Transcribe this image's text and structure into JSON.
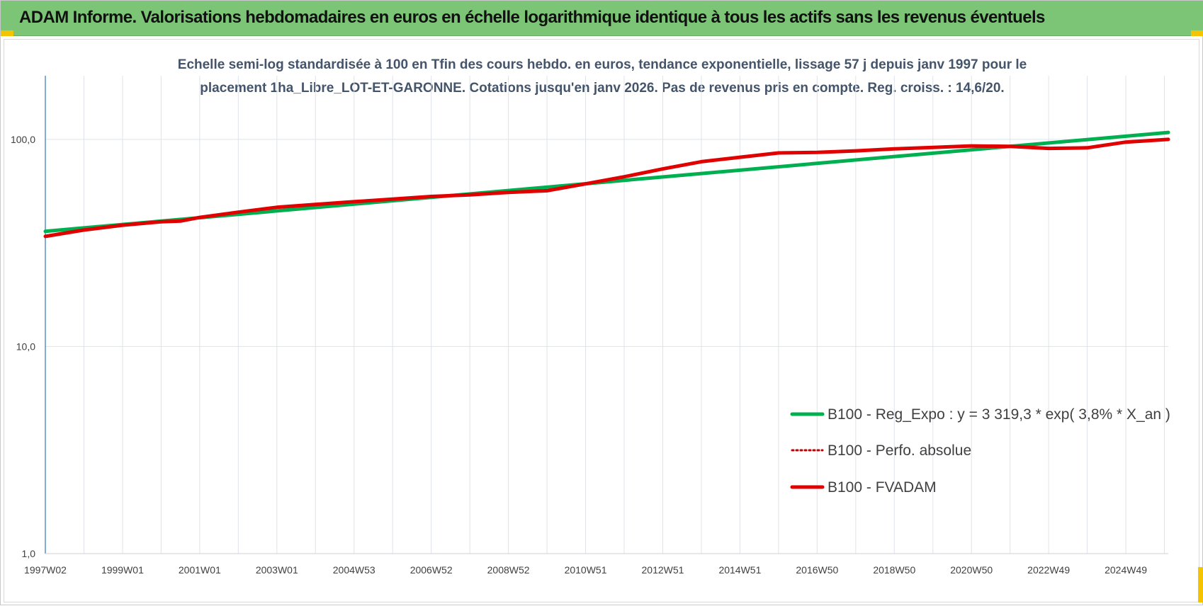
{
  "header": {
    "title": "ADAM Informe. Valorisations hebdomadaires en euros en échelle logarithmique identique à tous les actifs sans les revenus éventuels"
  },
  "colors": {
    "banner": "#7cc576",
    "reg_expo": "#00b050",
    "perfo_absolue": "#c00000",
    "fvadam": "#e00000",
    "axis_line": "#2e75b6",
    "grid": "#dfe3e8",
    "corner_marks": "#f5c400"
  },
  "chart_data": {
    "type": "line",
    "title_lines": [
      "Echelle semi-log standardisée à 100 en Tfin des cours hebdo. en euros, tendance exponentielle, lissage 57 j depuis janv 1997 pour le",
      "placement 1ha_Libre_LOT-ET-GARONNE. Cotations jusqu'en janv 2026. Pas de revenus pris en compte. Reg. croiss. : 14,6/20."
    ],
    "y_scale": "log",
    "ylim": [
      1,
      200
    ],
    "y_ticks": [
      "1,0",
      "10,0",
      "100,0"
    ],
    "y_tick_values": [
      1,
      10,
      100
    ],
    "xlim": [
      1997.0,
      2026.1
    ],
    "x_tick_labels": [
      "1997W02",
      "1999W01",
      "2001W01",
      "2003W01",
      "2004W53",
      "2006W52",
      "2008W52",
      "2010W51",
      "2012W51",
      "2014W51",
      "2016W50",
      "2018W50",
      "2020W50",
      "2022W49",
      "2024W49"
    ],
    "x_tick_positions": [
      1997.0,
      1999.0,
      2001.0,
      2003.0,
      2005.0,
      2007.0,
      2009.0,
      2011.0,
      2013.0,
      2015.0,
      2017.0,
      2019.0,
      2021.0,
      2023.0,
      2025.0
    ],
    "gridlines": true,
    "legend_position": "lower-right",
    "series": [
      {
        "name": "B100 - Reg_Expo : y = 3 319,3 * exp( 3,8% *  X_an )",
        "style": "solid",
        "color_key": "reg_expo",
        "x": [
          1997.0,
          2026.1
        ],
        "y": [
          36.0,
          108.0
        ]
      },
      {
        "name": "B100 - Perfo. absolue",
        "style": "dotted",
        "color_key": "perfo_absolue",
        "x": [
          1997.0,
          1998.0,
          1999.0,
          2000.0,
          2000.5,
          2001.0,
          2002.0,
          2003.0,
          2004.0,
          2005.0,
          2006.0,
          2007.0,
          2008.0,
          2009.0,
          2010.0,
          2011.0,
          2012.0,
          2013.0,
          2014.0,
          2015.0,
          2016.0,
          2017.0,
          2018.0,
          2019.0,
          2020.0,
          2021.0,
          2022.0,
          2023.0,
          2024.0,
          2025.0,
          2026.1
        ],
        "y": [
          34.0,
          36.5,
          38.5,
          40.0,
          40.3,
          42.0,
          44.5,
          47.0,
          48.5,
          50.0,
          51.5,
          53.0,
          54.0,
          55.5,
          56.5,
          61.0,
          66.0,
          72.0,
          78.0,
          82.0,
          86.0,
          86.5,
          88.0,
          90.0,
          91.5,
          93.0,
          92.5,
          90.5,
          91.0,
          97.0,
          100.0
        ]
      },
      {
        "name": "B100 - FVADAM",
        "style": "solid",
        "color_key": "fvadam",
        "x": [
          1997.0,
          1998.0,
          1999.0,
          2000.0,
          2000.5,
          2001.0,
          2002.0,
          2003.0,
          2004.0,
          2005.0,
          2006.0,
          2007.0,
          2008.0,
          2009.0,
          2010.0,
          2011.0,
          2012.0,
          2013.0,
          2014.0,
          2015.0,
          2016.0,
          2017.0,
          2018.0,
          2019.0,
          2020.0,
          2021.0,
          2022.0,
          2023.0,
          2024.0,
          2025.0,
          2026.1
        ],
        "y": [
          34.0,
          36.5,
          38.5,
          40.0,
          40.3,
          42.0,
          44.5,
          47.0,
          48.5,
          50.0,
          51.5,
          53.0,
          54.0,
          55.5,
          56.5,
          61.0,
          66.0,
          72.0,
          78.0,
          82.0,
          86.0,
          86.5,
          88.0,
          90.0,
          91.5,
          93.0,
          92.5,
          90.5,
          91.0,
          97.0,
          100.0
        ]
      }
    ]
  }
}
